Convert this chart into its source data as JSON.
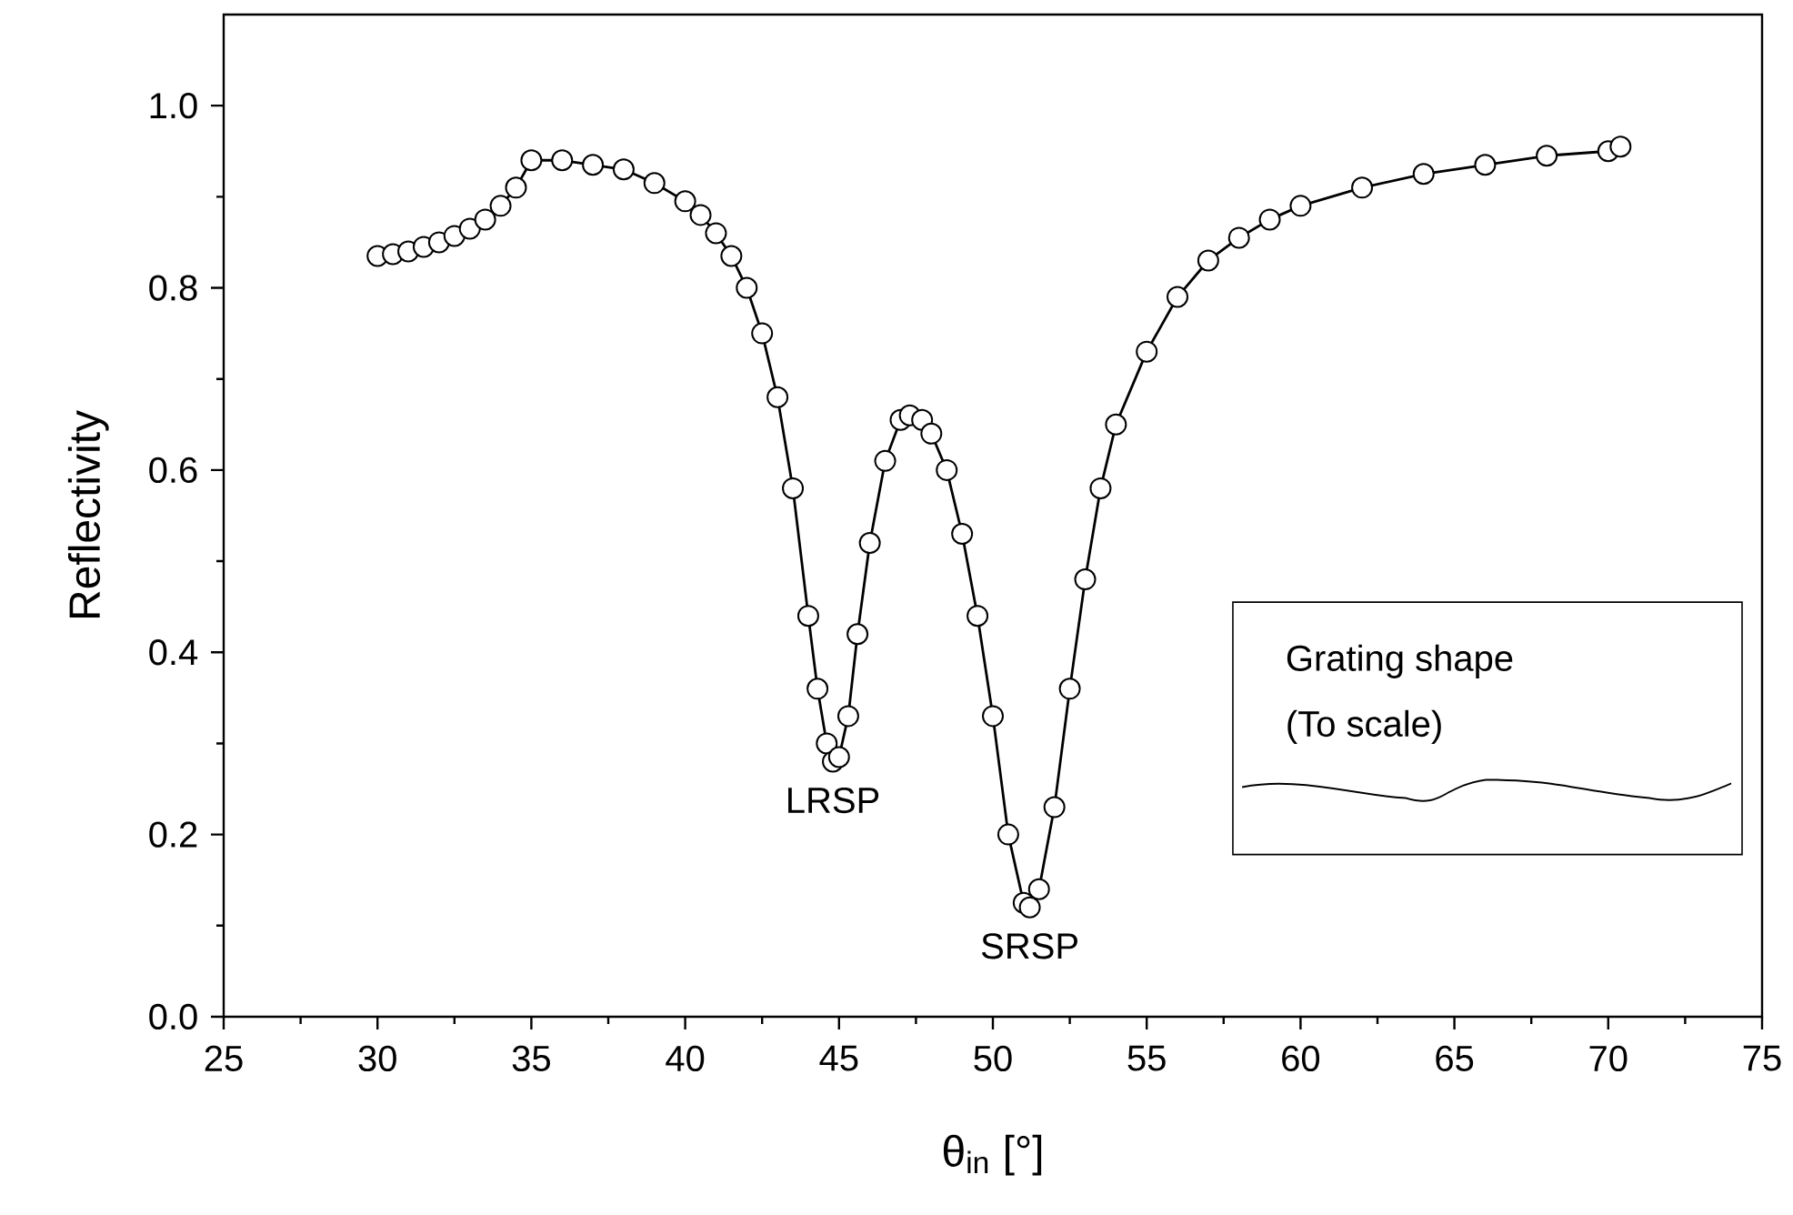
{
  "chart_data": {
    "type": "scatter",
    "xlabel": "θ$_{in}$ [°]",
    "ylabel": "Reflectivity",
    "xlim": [
      25,
      75
    ],
    "xticks": [
      25,
      30,
      35,
      40,
      45,
      50,
      55,
      60,
      65,
      70,
      75
    ],
    "ylim": [
      0,
      1.1
    ],
    "yticks": [
      {
        "value": 0,
        "label": "0.0"
      },
      {
        "value": 0.2,
        "label": "0.2"
      },
      {
        "value": 0.4,
        "label": "0.4"
      },
      {
        "value": 0.6,
        "label": "0.6"
      },
      {
        "value": 0.8,
        "label": "0.8"
      },
      {
        "value": 1.0,
        "label": "1.0"
      }
    ],
    "grid": false,
    "x": [
      30,
      30.5,
      31,
      31.5,
      32,
      32.5,
      33,
      33.5,
      34,
      34.5,
      35,
      36,
      37,
      38,
      39,
      40,
      40.5,
      41,
      41.5,
      42,
      42.5,
      43,
      43.5,
      44,
      44.3,
      44.6,
      44.8,
      45,
      45.3,
      45.6,
      46,
      46.5,
      47,
      47.3,
      47.7,
      48,
      48.5,
      49,
      49.5,
      50,
      50.5,
      51,
      51.2,
      51.5,
      52,
      52.5,
      53,
      53.5,
      54,
      55,
      56,
      57,
      58,
      59,
      60,
      62,
      64,
      66,
      68,
      70,
      70.4
    ],
    "series": [
      {
        "marker": "circle",
        "color": "#000000",
        "values": [
          0.835,
          0.837,
          0.84,
          0.845,
          0.85,
          0.857,
          0.865,
          0.875,
          0.89,
          0.91,
          0.94,
          0.94,
          0.935,
          0.93,
          0.915,
          0.895,
          0.88,
          0.86,
          0.835,
          0.8,
          0.75,
          0.68,
          0.58,
          0.44,
          0.36,
          0.3,
          0.28,
          0.285,
          0.33,
          0.42,
          0.52,
          0.61,
          0.655,
          0.66,
          0.655,
          0.64,
          0.6,
          0.53,
          0.44,
          0.33,
          0.2,
          0.125,
          0.12,
          0.14,
          0.23,
          0.36,
          0.48,
          0.58,
          0.65,
          0.73,
          0.79,
          0.83,
          0.855,
          0.875,
          0.89,
          0.91,
          0.925,
          0.935,
          0.945,
          0.95,
          0.955
        ]
      },
      {
        "type": "line",
        "marker": "none",
        "line_style": "solid",
        "color": "#000000",
        "values": [
          0.835,
          0.837,
          0.84,
          0.845,
          0.85,
          0.857,
          0.865,
          0.875,
          0.89,
          0.91,
          0.94,
          0.94,
          0.935,
          0.93,
          0.915,
          0.895,
          0.88,
          0.86,
          0.835,
          0.8,
          0.75,
          0.68,
          0.58,
          0.44,
          0.36,
          0.3,
          0.28,
          0.285,
          0.33,
          0.42,
          0.52,
          0.61,
          0.655,
          0.66,
          0.655,
          0.64,
          0.6,
          0.53,
          0.44,
          0.33,
          0.2,
          0.125,
          0.12,
          0.14,
          0.23,
          0.36,
          0.48,
          0.58,
          0.65,
          0.73,
          0.79,
          0.83,
          0.855,
          0.875,
          0.89,
          0.91,
          0.925,
          0.935,
          0.945,
          0.95,
          0.955
        ]
      }
    ],
    "annotations": [
      {
        "text": "LRSP",
        "x": 44.8,
        "y": 0.28
      },
      {
        "text": "SRSP",
        "x": 51.2,
        "y": 0.12
      },
      "Grating shape",
      "(To scale)"
    ]
  }
}
